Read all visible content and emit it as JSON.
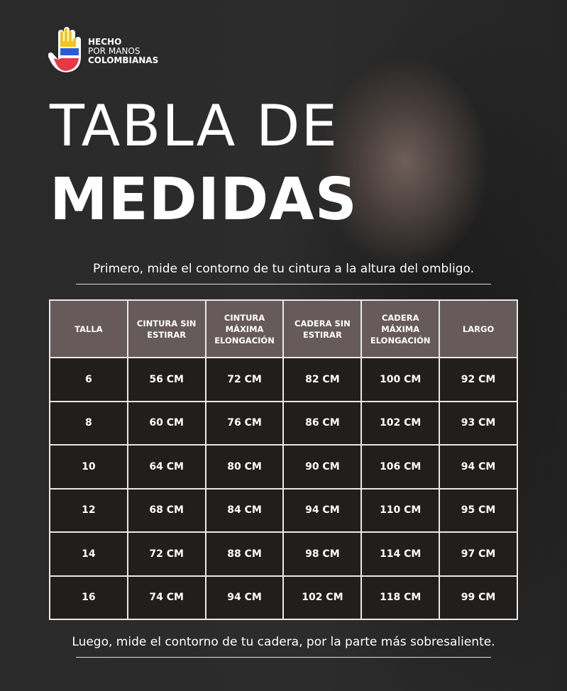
{
  "logo": {
    "line1": "HECHO",
    "line2": "POR MANOS",
    "line3": "COLOMBIANAS",
    "colors": [
      "#f5c518",
      "#2a5bd7",
      "#e63946"
    ]
  },
  "title": {
    "line1": "TABLA DE",
    "line2": "MEDIDAS"
  },
  "note_top": "Primero, mide  el contorno de tu cintura a la altura del ombligo.",
  "note_bottom": "Luego, mide el contorno de tu cadera, por la parte más sobresaliente.",
  "table": {
    "headers": [
      "TALLA",
      "CINTURA SIN ESTIRAR",
      "CINTURA MÁXIMA ELONGACIÓN",
      "CADERA SIN ESTIRAR",
      "CADERA MÁXIMA ELONGACIÓN",
      "LARGO"
    ],
    "rows": [
      [
        "6",
        "56 CM",
        "72 CM",
        "82 CM",
        "100 CM",
        "92 CM"
      ],
      [
        "8",
        "60 CM",
        "76 CM",
        "86 CM",
        "102 CM",
        "93 CM"
      ],
      [
        "10",
        "64 CM",
        "80 CM",
        "90 CM",
        "106 CM",
        "94 CM"
      ],
      [
        "12",
        "68 CM",
        "84 CM",
        "94 CM",
        "110 CM",
        "95 CM"
      ],
      [
        "14",
        "72 CM",
        "88 CM",
        "98 CM",
        "114 CM",
        "97 CM"
      ],
      [
        "16",
        "74 CM",
        "94 CM",
        "102 CM",
        "118 CM",
        "99 CM"
      ]
    ]
  }
}
